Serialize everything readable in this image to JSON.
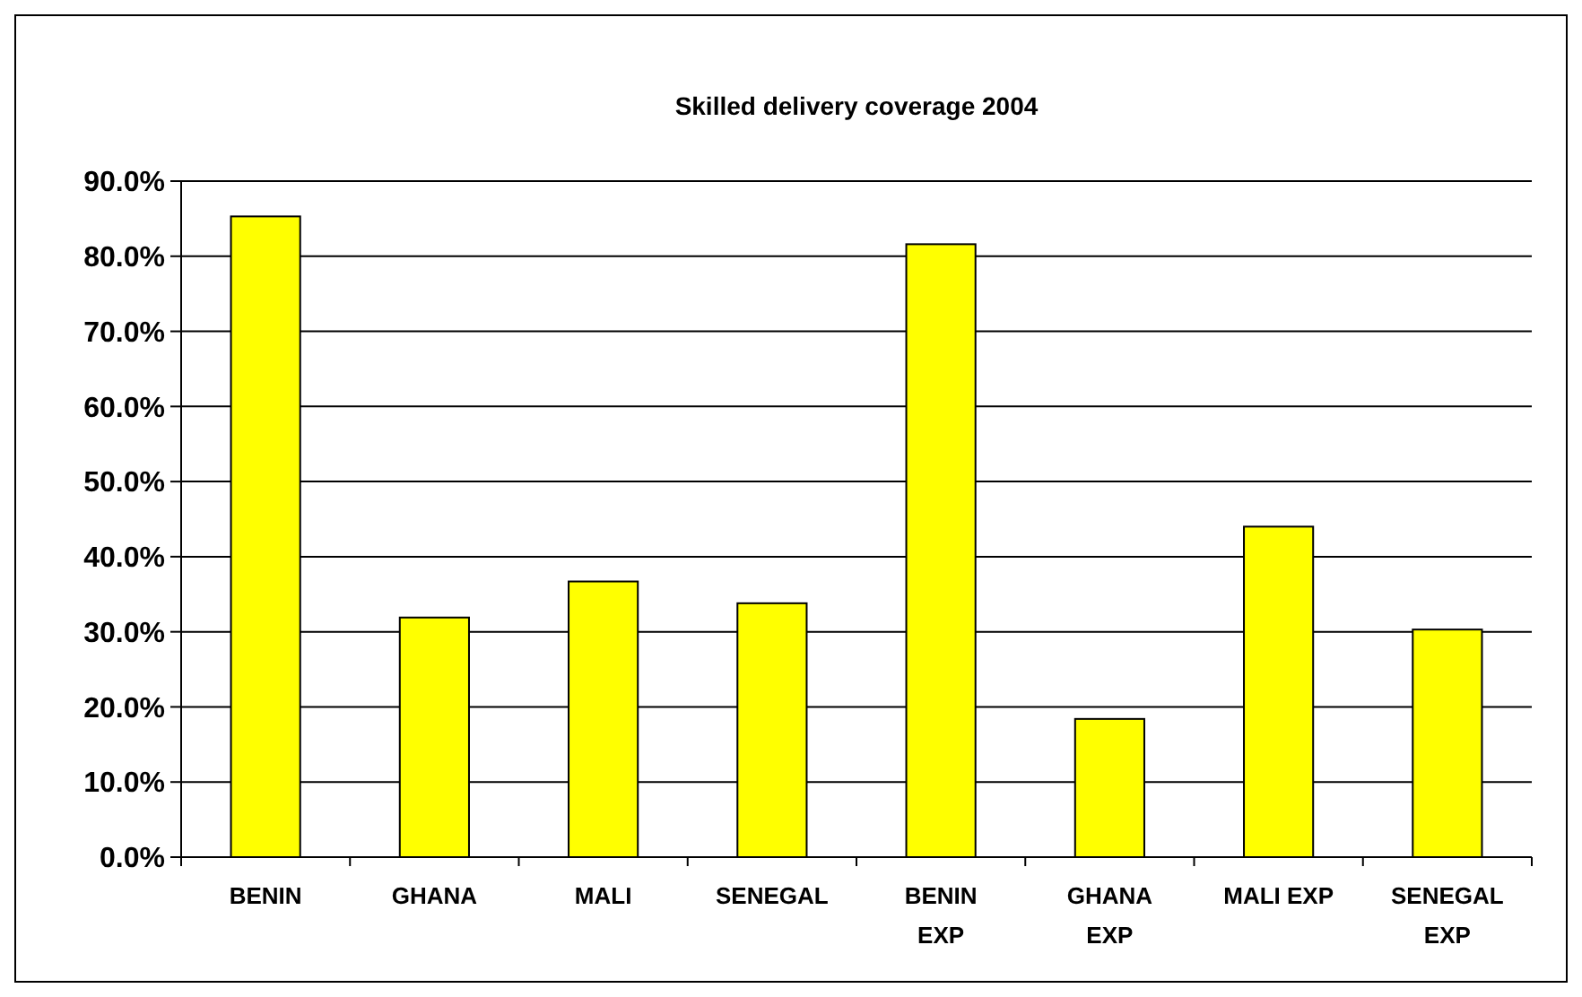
{
  "chart_data": {
    "type": "bar",
    "title": "Skilled delivery coverage 2004",
    "categories": [
      "BENIN",
      "GHANA",
      "MALI",
      "SENEGAL",
      "BENIN EXP",
      "GHANA EXP",
      "MALI EXP",
      "SENEGAL EXP"
    ],
    "values": [
      85.3,
      31.9,
      36.7,
      33.8,
      81.6,
      18.4,
      44.0,
      30.3
    ],
    "color": "#ffff00",
    "ylim": [
      0,
      90
    ],
    "yticks": [
      {
        "value": 0,
        "label": "0.0%"
      },
      {
        "value": 10,
        "label": "10.0%"
      },
      {
        "value": 20,
        "label": "20.0%"
      },
      {
        "value": 30,
        "label": "30.0%"
      },
      {
        "value": 40,
        "label": "40.0%"
      },
      {
        "value": 50,
        "label": "50.0%"
      },
      {
        "value": 60,
        "label": "60.0%"
      },
      {
        "value": 70,
        "label": "70.0%"
      },
      {
        "value": 80,
        "label": "80.0%"
      },
      {
        "value": 90,
        "label": "90.0%"
      }
    ],
    "grid": "y"
  }
}
